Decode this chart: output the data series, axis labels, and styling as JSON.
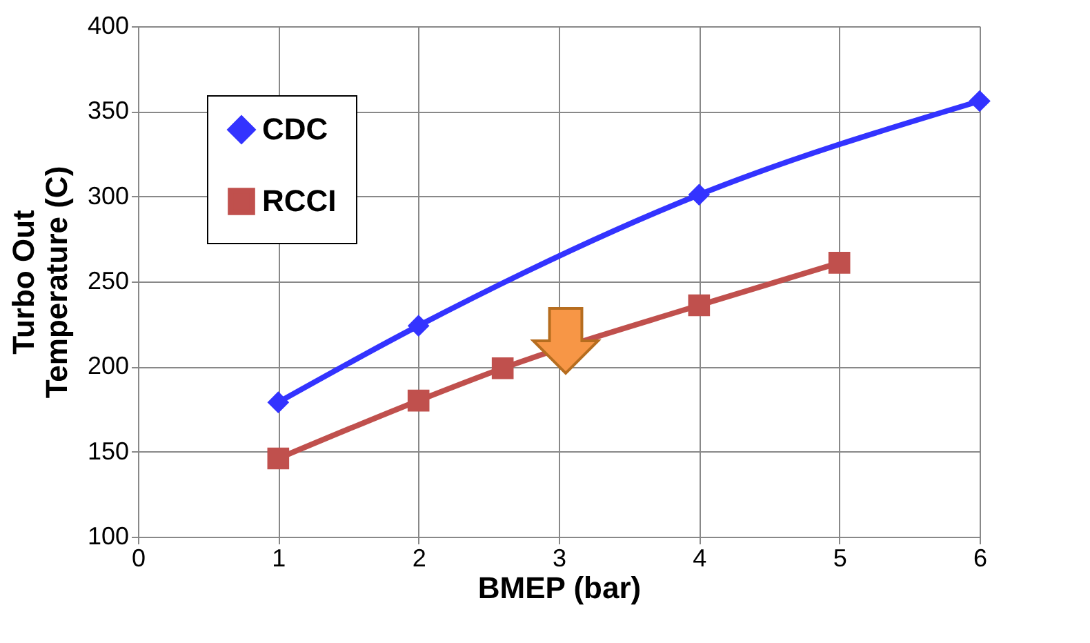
{
  "chart_data": {
    "type": "line",
    "xlabel": "BMEP (bar)",
    "ylabel": "Turbo Out\nTemperature (C)",
    "series": [
      {
        "name": "CDC",
        "color": "#3333ff",
        "marker": "diamond",
        "x": [
          1,
          2,
          4,
          6
        ],
        "values": [
          179,
          224,
          301,
          356
        ]
      },
      {
        "name": "RCCI",
        "color": "#c0504d",
        "marker": "square",
        "x": [
          1,
          2,
          2.6,
          4,
          5
        ],
        "values": [
          146,
          180,
          199,
          236,
          261
        ]
      }
    ],
    "xlim": [
      0,
      6
    ],
    "xticks": [
      0,
      1,
      2,
      3,
      4,
      5,
      6
    ],
    "ylim": [
      100,
      400
    ],
    "yticks": [
      100,
      150,
      200,
      250,
      300,
      350,
      400
    ],
    "grid": true,
    "legend": "top left",
    "line_style": "solid"
  }
}
